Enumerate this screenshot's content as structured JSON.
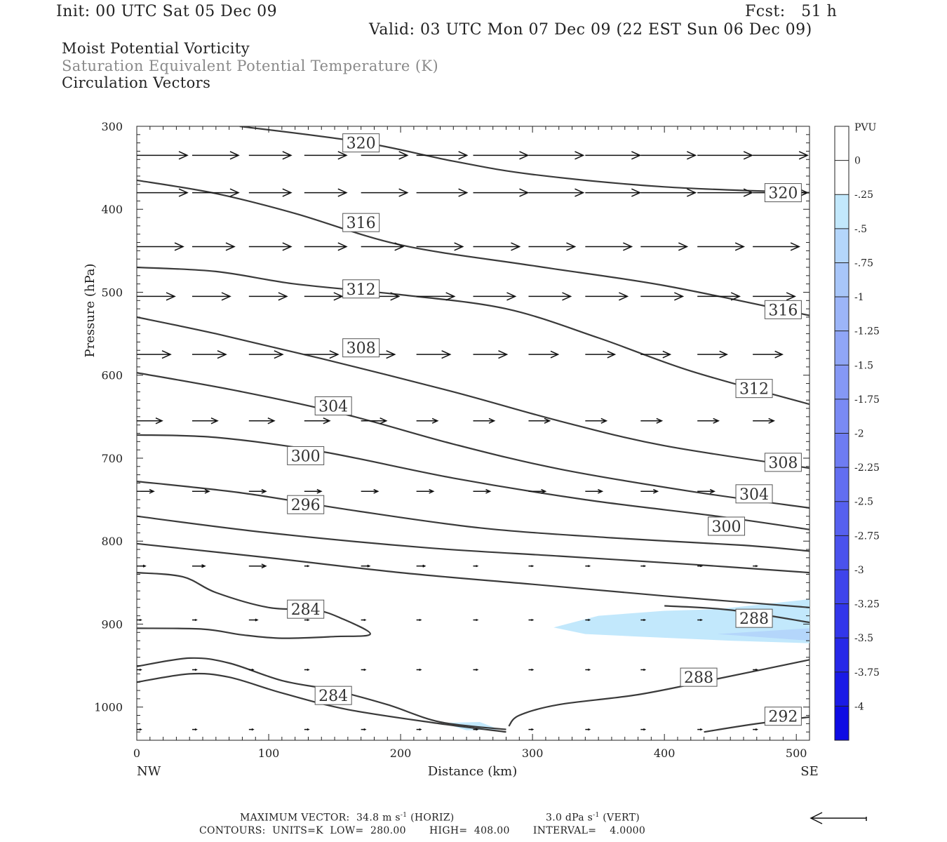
{
  "header": {
    "init": "Init: 00 UTC Sat 05 Dec 09",
    "fcst": "Fcst:   51 h",
    "valid": "Valid: 03 UTC Mon 07 Dec 09 (22 EST Sun 06 Dec 09)"
  },
  "titles": {
    "line1": "Moist Potential Vorticity",
    "line2": "Saturation Equivalent Potential Temperature (K)",
    "line3": "Circulation Vectors"
  },
  "footer": {
    "max_vector": "MAXIMUM VECTOR:  34.8 m s",
    "horiz": "(HORIZ)",
    "vert_val": "3.0 dPa s",
    "vert": "(VERT)",
    "contours": "CONTOURS:  UNITS=K  LOW=  280.00       HIGH=  408.00       INTERVAL=    4.0000"
  },
  "chart_data": {
    "type": "cross-section",
    "xlabel": "Distance (km)",
    "ylabel": "Pressure (hPa)",
    "xlim": [
      0,
      510
    ],
    "ylim": [
      1040,
      300
    ],
    "x_ticks": [
      "0",
      "100",
      "200",
      "300",
      "400",
      "500"
    ],
    "y_ticks": [
      "300",
      "400",
      "500",
      "600",
      "700",
      "800",
      "900",
      "1000"
    ],
    "x_end_labels": {
      "left": "NW",
      "right": "SE"
    },
    "colorbar": {
      "unit": "PVU",
      "labels": [
        "0",
        "-.25",
        "-.5",
        "-.75",
        "-1",
        "-1.25",
        "-1.5",
        "-1.75",
        "-2",
        "-2.25",
        "-2.5",
        "-2.75",
        "-3",
        "-3.25",
        "-3.5",
        "-3.75",
        "-4"
      ],
      "colors": [
        "#ffffff",
        "#ffffff",
        "#c2e8fc",
        "#b4d6fb",
        "#a8c6f9",
        "#9cb5f8",
        "#90a6f6",
        "#8598f5",
        "#7a8af4",
        "#6e7cf2",
        "#626ef1",
        "#5660ef",
        "#4a52ed",
        "#3e44eb",
        "#3236ea",
        "#2628e8",
        "#1a1ae6",
        "#0e0ce4"
      ]
    },
    "contours": [
      {
        "value": 320,
        "points": [
          [
            78,
            300
          ],
          [
            170,
            319
          ],
          [
            240,
            342
          ],
          [
            300,
            358
          ],
          [
            400,
            373
          ],
          [
            510,
            380
          ]
        ]
      },
      {
        "value": 316,
        "points": [
          [
            0,
            365
          ],
          [
            60,
            381
          ],
          [
            120,
            405
          ],
          [
            200,
            443
          ],
          [
            300,
            468
          ],
          [
            400,
            492
          ],
          [
            510,
            528
          ]
        ]
      },
      {
        "value": 312,
        "points": [
          [
            0,
            470
          ],
          [
            60,
            475
          ],
          [
            120,
            490
          ],
          [
            200,
            503
          ],
          [
            280,
            520
          ],
          [
            350,
            555
          ],
          [
            420,
            595
          ],
          [
            510,
            635
          ]
        ]
      },
      {
        "value": 308,
        "points": [
          [
            0,
            530
          ],
          [
            60,
            550
          ],
          [
            140,
            580
          ],
          [
            240,
            620
          ],
          [
            320,
            655
          ],
          [
            400,
            685
          ],
          [
            510,
            712
          ]
        ]
      },
      {
        "value": 304,
        "points": [
          [
            0,
            597
          ],
          [
            80,
            620
          ],
          [
            160,
            648
          ],
          [
            240,
            683
          ],
          [
            320,
            713
          ],
          [
            420,
            740
          ],
          [
            510,
            760
          ]
        ]
      },
      {
        "value": 300,
        "points": [
          [
            0,
            672
          ],
          [
            60,
            675
          ],
          [
            140,
            692
          ],
          [
            240,
            724
          ],
          [
            340,
            750
          ],
          [
            440,
            770
          ],
          [
            510,
            786
          ]
        ]
      },
      {
        "value": 296,
        "points": [
          [
            0,
            728
          ],
          [
            80,
            742
          ],
          [
            160,
            762
          ],
          [
            260,
            784
          ],
          [
            360,
            796
          ],
          [
            460,
            805
          ],
          [
            510,
            812
          ]
        ]
      },
      {
        "value": 292,
        "points": [
          [
            0,
            770
          ],
          [
            100,
            790
          ],
          [
            220,
            808
          ],
          [
            320,
            818
          ],
          [
            420,
            828
          ],
          [
            510,
            838
          ]
        ]
      },
      {
        "value": 288,
        "points": [
          [
            0,
            803
          ],
          [
            100,
            820
          ],
          [
            200,
            838
          ],
          [
            300,
            852
          ],
          [
            400,
            866
          ],
          [
            510,
            880
          ]
        ]
      },
      {
        "value": 284,
        "points": [
          [
            0,
            838
          ],
          [
            35,
            843
          ],
          [
            60,
            862
          ],
          [
            100,
            880
          ],
          [
            135,
            883
          ],
          [
            155,
            893
          ],
          [
            177,
            912
          ],
          [
            150,
            915
          ],
          [
            110,
            917
          ],
          [
            80,
            913
          ],
          [
            50,
            906
          ],
          [
            0,
            905
          ]
        ]
      },
      {
        "value": 288,
        "points": [
          [
            400,
            878
          ],
          [
            450,
            883
          ],
          [
            510,
            898
          ]
        ]
      },
      {
        "value": 288,
        "points": [
          [
            282,
            1023
          ],
          [
            290,
            1010
          ],
          [
            320,
            997
          ],
          [
            380,
            985
          ],
          [
            440,
            966
          ],
          [
            510,
            943
          ]
        ]
      },
      {
        "value": 284,
        "points": [
          [
            0,
            951
          ],
          [
            40,
            941
          ],
          [
            70,
            947
          ],
          [
            110,
            968
          ],
          [
            150,
            980
          ],
          [
            190,
            997
          ],
          [
            230,
            1018
          ],
          [
            280,
            1027
          ]
        ]
      },
      {
        "value": 280,
        "points": [
          [
            0,
            970
          ],
          [
            40,
            960
          ],
          [
            70,
            964
          ],
          [
            110,
            983
          ],
          [
            160,
            1003
          ],
          [
            230,
            1020
          ],
          [
            280,
            1030
          ]
        ]
      },
      {
        "value": 292,
        "points": [
          [
            430,
            1030
          ],
          [
            470,
            1020
          ],
          [
            510,
            1012
          ]
        ]
      }
    ],
    "contour_labels": [
      {
        "text": "320",
        "x": 170,
        "y": 320
      },
      {
        "text": "320",
        "x": 490,
        "y": 380
      },
      {
        "text": "316",
        "x": 170,
        "y": 416
      },
      {
        "text": "316",
        "x": 490,
        "y": 521
      },
      {
        "text": "312",
        "x": 170,
        "y": 496
      },
      {
        "text": "312",
        "x": 468,
        "y": 616
      },
      {
        "text": "308",
        "x": 170,
        "y": 567
      },
      {
        "text": "308",
        "x": 490,
        "y": 705
      },
      {
        "text": "304",
        "x": 149,
        "y": 637
      },
      {
        "text": "304",
        "x": 468,
        "y": 743
      },
      {
        "text": "300",
        "x": 128,
        "y": 697
      },
      {
        "text": "300",
        "x": 447,
        "y": 782
      },
      {
        "text": "296",
        "x": 128,
        "y": 756
      },
      {
        "text": "284",
        "x": 128,
        "y": 882
      },
      {
        "text": "288",
        "x": 468,
        "y": 893
      },
      {
        "text": "288",
        "x": 426,
        "y": 964
      },
      {
        "text": "284",
        "x": 149,
        "y": 986
      },
      {
        "text": "292",
        "x": 490,
        "y": 1011
      }
    ],
    "pv_shading": [
      {
        "value": -0.25,
        "points": [
          [
            316,
            904
          ],
          [
            350,
            890
          ],
          [
            400,
            884
          ],
          [
            440,
            882
          ],
          [
            510,
            870
          ],
          [
            510,
            923
          ],
          [
            450,
            920
          ],
          [
            380,
            915
          ],
          [
            340,
            912
          ]
        ]
      },
      {
        "value": -0.5,
        "points": [
          [
            440,
            912
          ],
          [
            510,
            905
          ],
          [
            510,
            920
          ]
        ]
      },
      {
        "value": -0.25,
        "points": [
          [
            232,
            1019
          ],
          [
            260,
            1018
          ],
          [
            275,
            1027
          ],
          [
            250,
            1028
          ]
        ]
      }
    ],
    "vectors": {
      "levels": [
        335,
        380,
        445,
        505,
        575,
        655,
        740,
        830,
        895,
        955,
        1027
      ],
      "x": [
        0,
        42,
        85,
        127,
        170,
        212,
        255,
        297,
        340,
        382,
        425,
        467,
        510
      ],
      "u": [
        [
          12,
          11,
          10,
          10,
          11,
          12,
          13,
          13,
          13,
          13,
          13,
          13,
          13
        ],
        [
          12,
          11,
          10,
          10,
          11,
          12,
          13,
          13,
          13,
          13,
          13,
          13,
          13
        ],
        [
          11,
          10,
          10,
          10,
          10,
          11,
          11,
          11,
          11,
          11,
          11,
          11,
          11
        ],
        [
          9,
          9,
          9,
          9,
          9,
          9,
          10,
          10,
          10,
          10,
          10,
          10,
          10
        ],
        [
          8,
          8,
          8,
          8,
          8,
          8,
          8,
          7,
          7,
          7,
          7,
          7,
          7
        ],
        [
          6,
          6,
          6,
          6,
          6,
          5,
          5,
          5,
          5,
          5,
          5,
          5,
          5
        ],
        [
          4,
          4,
          4,
          4,
          4,
          4,
          4,
          4,
          4,
          4,
          4,
          4,
          4
        ],
        [
          2,
          3,
          4,
          1,
          2,
          2,
          1,
          1,
          1,
          1,
          1,
          1,
          1
        ],
        [
          1,
          1,
          2,
          1,
          1,
          1,
          1,
          1,
          1,
          1,
          1,
          1,
          1
        ],
        [
          1,
          1,
          1,
          1,
          1,
          1,
          1,
          1,
          1,
          1,
          1,
          1,
          1
        ],
        [
          1,
          1,
          1,
          1,
          1,
          1,
          1,
          1,
          1,
          1,
          1,
          1,
          1
        ]
      ]
    },
    "reference_vector_direction": "left"
  }
}
